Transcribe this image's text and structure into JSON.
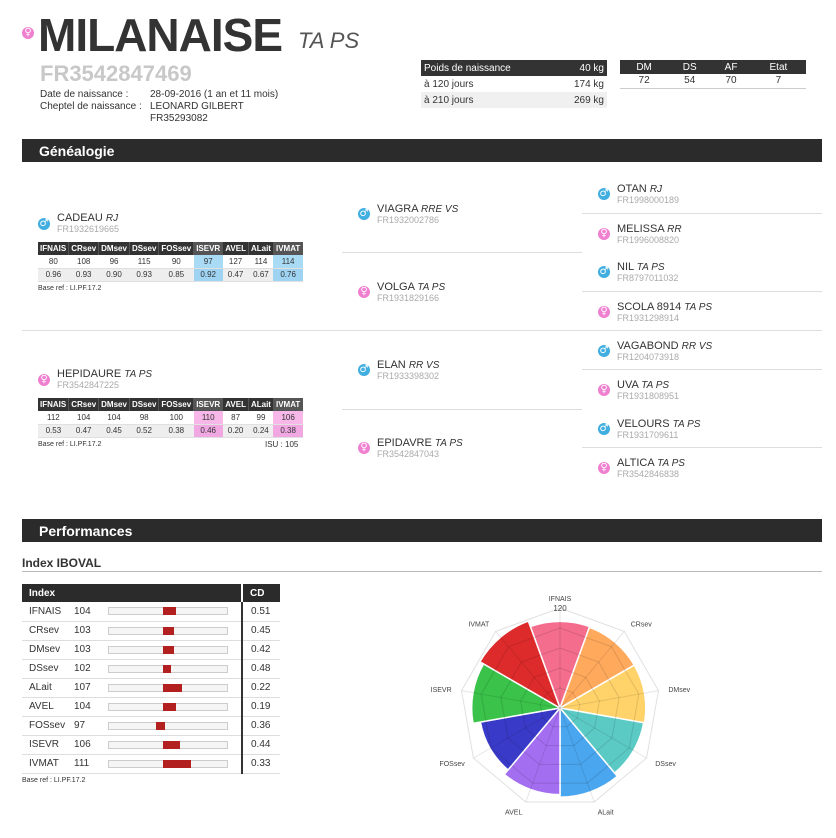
{
  "header": {
    "name": "MILANAISE",
    "breed": "TA PS",
    "id_number": "FR3542847469",
    "birth_label": "Date de naissance :",
    "birth_value": "28-09-2016 (1 an et 11 mois)",
    "herd_label": "Cheptel de naissance :",
    "herd_name": "LEONARD GILBERT",
    "herd_id": "FR35293082",
    "sex_icon": "female-symbol-icon"
  },
  "weights": {
    "rows": [
      {
        "label": "Poids de naissance",
        "value": "40 kg"
      },
      {
        "label": "à 120 jours",
        "value": "174 kg"
      },
      {
        "label": "à 210 jours",
        "value": "269 kg"
      }
    ]
  },
  "scores": {
    "headers": [
      "DM",
      "DS",
      "AF",
      "Etat"
    ],
    "values": [
      "72",
      "54",
      "70",
      "7"
    ]
  },
  "sections": {
    "genealogy": "Généalogie",
    "performance": "Performances",
    "iboval": "Index IBOVAL"
  },
  "genealogy": {
    "sire": {
      "name": "CADEAU",
      "code": "RJ",
      "id": "FR1932619665"
    },
    "dam": {
      "name": "HEPIDAURE",
      "code": "TA PS",
      "id": "FR3542847225"
    },
    "index_headers": [
      "IFNAIS",
      "CRsev",
      "DMsev",
      "DSsev",
      "FOSsev",
      "ISEVR",
      "AVEL",
      "ALait",
      "IVMAT"
    ],
    "sire_values": [
      "80",
      "108",
      "96",
      "115",
      "90",
      "97",
      "127",
      "114",
      "114"
    ],
    "sire_cd": [
      "0.96",
      "0.93",
      "0.90",
      "0.93",
      "0.85",
      "0.92",
      "0.47",
      "0.67",
      "0.76"
    ],
    "dam_values": [
      "112",
      "104",
      "104",
      "98",
      "100",
      "110",
      "87",
      "99",
      "106"
    ],
    "dam_cd": [
      "0.53",
      "0.47",
      "0.45",
      "0.52",
      "0.38",
      "0.46",
      "0.20",
      "0.24",
      "0.38"
    ],
    "base_ref": "Base ref : LI.PF.17.2",
    "isu": "ISU : 105",
    "grandparents": [
      {
        "name": "VIAGRA",
        "code": "RRE VS",
        "id": "FR1932002786"
      },
      {
        "name": "VOLGA",
        "code": "TA PS",
        "id": "FR1931829166"
      },
      {
        "name": "ELAN",
        "code": "RR VS",
        "id": "FR1933398302"
      },
      {
        "name": "EPIDAVRE",
        "code": "TA PS",
        "id": "FR3542847043"
      }
    ],
    "great_grandparents": [
      {
        "name": "OTAN",
        "code": "RJ",
        "id": "FR1998000189"
      },
      {
        "name": "MELISSA",
        "code": "RR",
        "id": "FR1996008820"
      },
      {
        "name": "NIL",
        "code": "TA PS",
        "id": "FR8797011032"
      },
      {
        "name": "SCOLA 8914",
        "code": "TA PS",
        "id": "FR1931298914"
      },
      {
        "name": "VAGABOND",
        "code": "RR VS",
        "id": "FR1204073918"
      },
      {
        "name": "UVA",
        "code": "TA PS",
        "id": "FR1931808951"
      },
      {
        "name": "VELOURS",
        "code": "TA PS",
        "id": "FR1931709611"
      },
      {
        "name": "ALTICA",
        "code": "TA PS",
        "id": "FR3542846838"
      }
    ]
  },
  "performance": {
    "col_index": "Index",
    "col_cd": "CD",
    "rows": [
      {
        "label": "IFNAIS",
        "value": "104",
        "cd": "0.51",
        "level": 104
      },
      {
        "label": "CRsev",
        "value": "103",
        "cd": "0.45",
        "level": 103
      },
      {
        "label": "DMsev",
        "value": "103",
        "cd": "0.42",
        "level": 103
      },
      {
        "label": "DSsev",
        "value": "102",
        "cd": "0.48",
        "level": 102
      },
      {
        "label": "ALait",
        "value": "107",
        "cd": "0.22",
        "level": 107
      },
      {
        "label": "AVEL",
        "value": "104",
        "cd": "0.19",
        "level": 104
      },
      {
        "label": "FOSsev",
        "value": "97",
        "cd": "0.36",
        "level": 97
      },
      {
        "label": "ISEVR",
        "value": "106",
        "cd": "0.44",
        "level": 106
      },
      {
        "label": "IVMAT",
        "value": "111",
        "cd": "0.33",
        "level": 111
      }
    ],
    "base_ref": "Base ref : LI.PF.17.2"
  },
  "chart_data": {
    "type": "polar-area",
    "categories": [
      "IFNAIS",
      "CRsev",
      "DMsev",
      "DSsev",
      "ALait",
      "AVEL",
      "FOSsev",
      "ISEVR",
      "IVMAT"
    ],
    "values": [
      104,
      103,
      103,
      102,
      107,
      104,
      97,
      106,
      111
    ],
    "r_max_label": "120",
    "r_max": 120,
    "colors": [
      "#f46d8c",
      "#ffa95c",
      "#ffd36a",
      "#5ccac4",
      "#4aa6ee",
      "#a46ef0",
      "#3a3ac8",
      "#3ac24a",
      "#dd2b2b"
    ],
    "grid": true
  }
}
